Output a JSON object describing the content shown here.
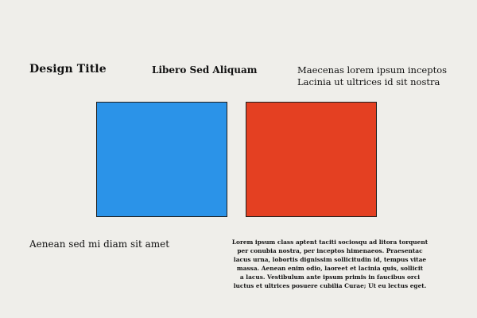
{
  "title": "Design Title",
  "subtitle": "Libero Sed Aliquam",
  "tagline": {
    "line1": "Maecenas lorem ipsum inceptos",
    "line2": "Lacinia ut ultrices id sit nostra"
  },
  "swatches": {
    "blue": {
      "color": "#2b93e8"
    },
    "red": {
      "color": "#e44022"
    }
  },
  "caption": "Aenean sed mi diam sit amet",
  "body_lines": [
    "Lorem ipsum class aptent taciti sociosqu ad litora torquent",
    "per conubia nostra, per inceptos himenaeos. Praesentac",
    "lacus urna, lobortis dignissim sollicitudin id, tempus vitae",
    "massa. Aenean enim odio, laoreet et lacinia quis, sollicit",
    "a lacus. Vestibulum ante ipsum primis in faucibus orci",
    "luctus et ultrices posuere cubilia Curae; Ut eu lectus eget."
  ]
}
